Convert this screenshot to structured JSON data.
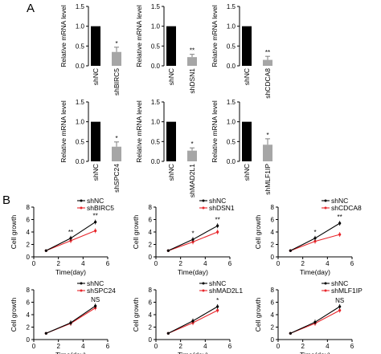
{
  "panel_labels": [
    "A",
    "B"
  ],
  "bar_panels": [
    {
      "ylabel": "Relative mRNA level",
      "categories": [
        "shNC",
        "shBIRC5"
      ],
      "values": [
        1.0,
        0.35
      ],
      "errors": [
        0,
        0.12
      ],
      "annotation": "*"
    },
    {
      "ylabel": "Relative mRNA level",
      "categories": [
        "shNC",
        "shDSN1"
      ],
      "values": [
        1.0,
        0.22
      ],
      "errors": [
        0,
        0.07
      ],
      "annotation": "**"
    },
    {
      "ylabel": "Relative mRNA level",
      "categories": [
        "shNC",
        "shCDCA8"
      ],
      "values": [
        1.0,
        0.15
      ],
      "errors": [
        0,
        0.09
      ],
      "annotation": "**"
    },
    {
      "ylabel": "Relative mRNA level",
      "categories": [
        "shNC",
        "shSPC24"
      ],
      "values": [
        1.0,
        0.37
      ],
      "errors": [
        0,
        0.12
      ],
      "annotation": "*"
    },
    {
      "ylabel": "Relative mRNA level",
      "categories": [
        "shNC",
        "shMAD2L1"
      ],
      "values": [
        1.0,
        0.27
      ],
      "errors": [
        0,
        0.07
      ],
      "annotation": "*"
    },
    {
      "ylabel": "Relative mRNA level",
      "categories": [
        "shNC",
        "shMLF1IP"
      ],
      "values": [
        1.0,
        0.42
      ],
      "errors": [
        0,
        0.15
      ],
      "annotation": "*"
    }
  ],
  "bar_axis": {
    "ylim": [
      0,
      1.5
    ],
    "ticks": [
      "0.0",
      "0.5",
      "1.0",
      "1.5"
    ]
  },
  "line_panels": [
    {
      "legend": [
        "shNC",
        "shBIRC5"
      ],
      "x": [
        1,
        3,
        5
      ],
      "series": [
        {
          "name": "shNC",
          "values": [
            1.0,
            3.0,
            5.6
          ]
        },
        {
          "name": "shBIRC5",
          "values": [
            1.0,
            2.6,
            4.2
          ]
        }
      ],
      "annotations": [
        "**",
        "**"
      ]
    },
    {
      "legend": [
        "shNC",
        "shDSN1"
      ],
      "x": [
        1,
        3,
        5
      ],
      "series": [
        {
          "name": "shNC",
          "values": [
            1.0,
            2.8,
            5.0
          ]
        },
        {
          "name": "shDSN1",
          "values": [
            1.0,
            2.4,
            4.0
          ]
        }
      ],
      "annotations": [
        "*",
        "**"
      ]
    },
    {
      "legend": [
        "shNC",
        "shCDCA8"
      ],
      "x": [
        1,
        3,
        5
      ],
      "series": [
        {
          "name": "shNC",
          "values": [
            1.0,
            3.0,
            5.4
          ]
        },
        {
          "name": "shCDCA8",
          "values": [
            1.0,
            2.5,
            3.6
          ]
        }
      ],
      "annotations": [
        "*",
        "**"
      ]
    },
    {
      "legend": [
        "shNC",
        "shSPC24"
      ],
      "x": [
        1,
        3,
        5
      ],
      "series": [
        {
          "name": "shNC",
          "values": [
            1.0,
            2.7,
            5.4
          ]
        },
        {
          "name": "shSPC24",
          "values": [
            1.0,
            2.6,
            5.1
          ]
        }
      ],
      "annotations": [
        "",
        "NS"
      ]
    },
    {
      "legend": [
        "shNC",
        "shMAD2L1"
      ],
      "x": [
        1,
        3,
        5
      ],
      "series": [
        {
          "name": "shNC",
          "values": [
            1.0,
            3.0,
            5.3
          ]
        },
        {
          "name": "shMAD2L1",
          "values": [
            1.0,
            2.7,
            4.7
          ]
        }
      ],
      "annotations": [
        "",
        "*"
      ]
    },
    {
      "legend": [
        "shNC",
        "shMLF1IP"
      ],
      "x": [
        1,
        3,
        5
      ],
      "series": [
        {
          "name": "shNC",
          "values": [
            1.0,
            2.8,
            5.3
          ]
        },
        {
          "name": "shMLF1IP",
          "values": [
            1.0,
            2.6,
            4.7
          ]
        }
      ],
      "annotations": [
        "",
        "NS"
      ]
    }
  ],
  "line_axis": {
    "ylabel": "Cell growth",
    "xlabel": "Time(day)",
    "xlim": [
      0,
      6
    ],
    "ylim": [
      0,
      8
    ],
    "xticks": [
      "0",
      "2",
      "4",
      "6"
    ],
    "yticks": [
      "0",
      "2",
      "4",
      "6",
      "8"
    ]
  },
  "colors": {
    "control": "#000000",
    "knockdown_bar": "#a6a6a6",
    "knockdown_line": "#e8262b",
    "error_bar": "#7f7f7f"
  },
  "chart_data": [
    {
      "type": "bar",
      "categories": [
        "shNC",
        "shBIRC5"
      ],
      "values": [
        1.0,
        0.35
      ],
      "ylabel": "Relative mRNA level",
      "ylim": [
        0,
        1.5
      ]
    },
    {
      "type": "bar",
      "categories": [
        "shNC",
        "shDSN1"
      ],
      "values": [
        1.0,
        0.22
      ],
      "ylabel": "Relative mRNA level",
      "ylim": [
        0,
        1.5
      ]
    },
    {
      "type": "bar",
      "categories": [
        "shNC",
        "shCDCA8"
      ],
      "values": [
        1.0,
        0.15
      ],
      "ylabel": "Relative mRNA level",
      "ylim": [
        0,
        1.5
      ]
    },
    {
      "type": "bar",
      "categories": [
        "shNC",
        "shSPC24"
      ],
      "values": [
        1.0,
        0.37
      ],
      "ylabel": "Relative mRNA level",
      "ylim": [
        0,
        1.5
      ]
    },
    {
      "type": "bar",
      "categories": [
        "shNC",
        "shMAD2L1"
      ],
      "values": [
        1.0,
        0.27
      ],
      "ylabel": "Relative mRNA level",
      "ylim": [
        0,
        1.5
      ]
    },
    {
      "type": "bar",
      "categories": [
        "shNC",
        "shMLF1IP"
      ],
      "values": [
        1.0,
        0.42
      ],
      "ylabel": "Relative mRNA level",
      "ylim": [
        0,
        1.5
      ]
    },
    {
      "type": "line",
      "x": [
        1,
        3,
        5
      ],
      "series": [
        {
          "name": "shNC",
          "values": [
            1.0,
            3.0,
            5.6
          ]
        },
        {
          "name": "shBIRC5",
          "values": [
            1.0,
            2.6,
            4.2
          ]
        }
      ],
      "xlabel": "Time(day)",
      "ylabel": "Cell growth",
      "xlim": [
        0,
        6
      ],
      "ylim": [
        0,
        8
      ]
    },
    {
      "type": "line",
      "x": [
        1,
        3,
        5
      ],
      "series": [
        {
          "name": "shNC",
          "values": [
            1.0,
            2.8,
            5.0
          ]
        },
        {
          "name": "shDSN1",
          "values": [
            1.0,
            2.4,
            4.0
          ]
        }
      ],
      "xlabel": "Time(day)",
      "ylabel": "Cell growth",
      "xlim": [
        0,
        6
      ],
      "ylim": [
        0,
        8
      ]
    },
    {
      "type": "line",
      "x": [
        1,
        3,
        5
      ],
      "series": [
        {
          "name": "shNC",
          "values": [
            1.0,
            3.0,
            5.4
          ]
        },
        {
          "name": "shCDCA8",
          "values": [
            1.0,
            2.5,
            3.6
          ]
        }
      ],
      "xlabel": "Time(day)",
      "ylabel": "Cell growth",
      "xlim": [
        0,
        6
      ],
      "ylim": [
        0,
        8
      ]
    },
    {
      "type": "line",
      "x": [
        1,
        3,
        5
      ],
      "series": [
        {
          "name": "shNC",
          "values": [
            1.0,
            2.7,
            5.4
          ]
        },
        {
          "name": "shSPC24",
          "values": [
            1.0,
            2.6,
            5.1
          ]
        }
      ],
      "xlabel": "Time(day)",
      "ylabel": "Cell growth",
      "xlim": [
        0,
        6
      ],
      "ylim": [
        0,
        8
      ]
    },
    {
      "type": "line",
      "x": [
        1,
        3,
        5
      ],
      "series": [
        {
          "name": "shNC",
          "values": [
            1.0,
            3.0,
            5.3
          ]
        },
        {
          "name": "shMAD2L1",
          "values": [
            1.0,
            2.7,
            4.7
          ]
        }
      ],
      "xlabel": "Time(day)",
      "ylabel": "Cell growth",
      "xlim": [
        0,
        6
      ],
      "ylim": [
        0,
        8
      ]
    },
    {
      "type": "line",
      "x": [
        1,
        3,
        5
      ],
      "series": [
        {
          "name": "shNC",
          "values": [
            1.0,
            2.8,
            5.3
          ]
        },
        {
          "name": "shMLF1IP",
          "values": [
            1.0,
            2.6,
            4.7
          ]
        }
      ],
      "xlabel": "Time(day)",
      "ylabel": "Cell growth",
      "xlim": [
        0,
        6
      ],
      "ylim": [
        0,
        8
      ]
    }
  ]
}
